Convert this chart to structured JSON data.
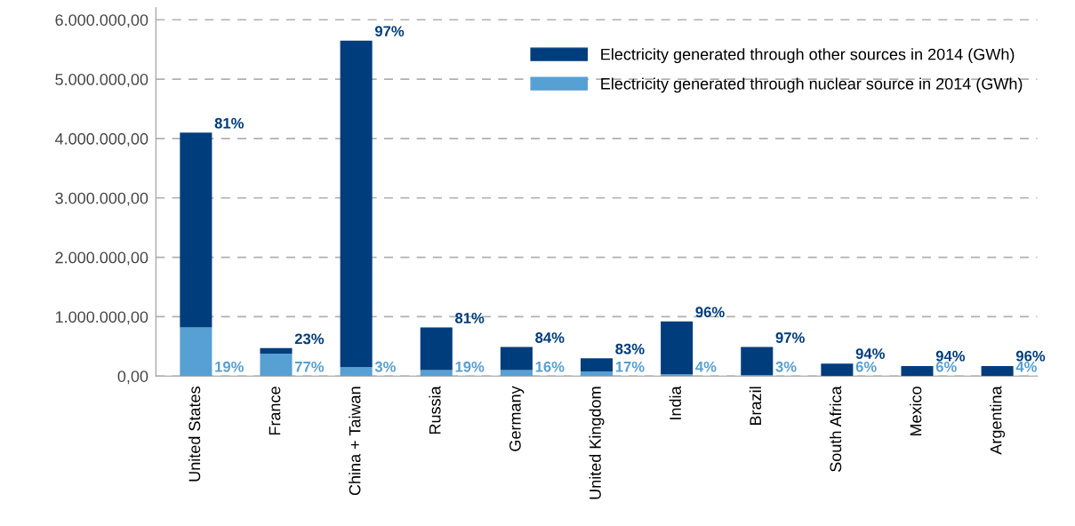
{
  "chart_data": {
    "type": "bar",
    "stacked": true,
    "categories": [
      "United States",
      "France",
      "China + Taiwan",
      "Russia",
      "Germany",
      "United Kingdom",
      "India",
      "Brazil",
      "South Africa",
      "Mexico",
      "Argentina"
    ],
    "series": [
      {
        "name": "Electricity generated through nuclear source in 2014 (GWh)",
        "color": "#56a0d3",
        "values": [
          820000,
          380000,
          150000,
          100000,
          100000,
          80000,
          30000,
          20000,
          null,
          null,
          null
        ]
      },
      {
        "name": "Electricity generated through other sources in 2014 (GWh)",
        "color": "#003d7c",
        "values": [
          3280000,
          90000,
          5500000,
          720000,
          390000,
          220000,
          890000,
          470000,
          210000,
          170000,
          170000
        ]
      }
    ],
    "annotations": [
      {
        "text": "81%",
        "x": "United States",
        "y": 4100000
      },
      {
        "text": "19%",
        "x": "United States",
        "y": 0
      },
      {
        "text": "23%",
        "x": "France",
        "y": 470000
      },
      {
        "text": "77%",
        "x": "France",
        "y": 0
      },
      {
        "text": "97%",
        "x": "China + Taiwan",
        "y": 5650000
      },
      {
        "text": "3%",
        "x": "China + Taiwan",
        "y": 0
      },
      {
        "text": "81%",
        "x": "Russia",
        "y": 820000
      },
      {
        "text": "19%",
        "x": "Russia",
        "y": 0
      },
      {
        "text": "84%",
        "x": "Germany",
        "y": 490000
      },
      {
        "text": "16%",
        "x": "Germany",
        "y": 0
      },
      {
        "text": "83%",
        "x": "United Kingdom",
        "y": 300000
      },
      {
        "text": "17%",
        "x": "United Kingdom",
        "y": 0
      },
      {
        "text": "96%",
        "x": "India",
        "y": 920000
      },
      {
        "text": "4%",
        "x": "India",
        "y": 0
      },
      {
        "text": "97%",
        "x": "Brazil",
        "y": 490000
      },
      {
        "text": "3%",
        "x": "Brazil",
        "y": 0
      },
      {
        "text": "94%",
        "x": "South Africa",
        "y": 220000
      },
      {
        "text": "6%",
        "x": "South Africa",
        "y": 0
      },
      {
        "text": "94%",
        "x": "Mexico",
        "y": 180000
      },
      {
        "text": "6%",
        "x": "Mexico",
        "y": 0
      },
      {
        "text": "96%",
        "x": "Argentina",
        "y": 180000
      },
      {
        "text": "4%",
        "x": "Argentina",
        "y": 0
      }
    ],
    "ylim": [
      0,
      6200000
    ],
    "yticks": [
      {
        "value": 0,
        "label": "0,00"
      },
      {
        "value": 1000000,
        "label": "1.000.000,00"
      },
      {
        "value": 2000000,
        "label": "2.000.000,00"
      },
      {
        "value": 3000000,
        "label": "3.000.000,00"
      },
      {
        "value": 4000000,
        "label": "4.000.000,00"
      },
      {
        "value": 5000000,
        "label": "5.000.000,00"
      },
      {
        "value": 6000000,
        "label": "6.000.000,00"
      }
    ],
    "grid": "y",
    "legend": "top right"
  }
}
